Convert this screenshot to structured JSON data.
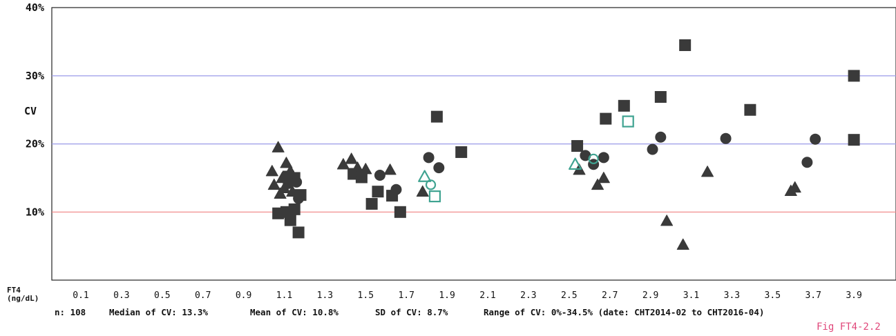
{
  "chart_data": {
    "type": "scatter",
    "xlabel": "FT4",
    "xlabel_unit": "(ng/dL)",
    "ylabel": "CV",
    "xlim": [
      0.0,
      4.0
    ],
    "ylim": [
      0,
      40
    ],
    "y_ticks": [
      {
        "value": 40,
        "label": "40%"
      },
      {
        "value": 30,
        "label": "30%"
      },
      {
        "value": 20,
        "label": "20%"
      },
      {
        "value": 10,
        "label": "10%"
      }
    ],
    "x_ticks": [
      "0.1",
      "0.3",
      "0.5",
      "0.7",
      "0.9",
      "1.1",
      "1.3",
      "1.5",
      "1.7",
      "1.9",
      "2.1",
      "2.3",
      "2.5",
      "2.7",
      "2.9",
      "3.1",
      "3.3",
      "3.5",
      "3.7",
      "3.9"
    ],
    "reference_lines": [
      {
        "y": 30,
        "color": "#9a9ae8"
      },
      {
        "y": 20,
        "color": "#9a9ae8"
      },
      {
        "y": 10,
        "color": "#f08080"
      }
    ],
    "series": [
      {
        "marker": "triangle",
        "filled": true,
        "color": "#3a3a3a",
        "points": [
          [
            1.07,
            19.5
          ],
          [
            1.04,
            16
          ],
          [
            1.09,
            15
          ],
          [
            1.11,
            17.2
          ],
          [
            1.13,
            16
          ],
          [
            1.05,
            14
          ],
          [
            1.1,
            13.5
          ],
          [
            1.08,
            12.7
          ],
          [
            1.14,
            13
          ],
          [
            1.39,
            17
          ],
          [
            1.43,
            17.8
          ],
          [
            1.46,
            16.5
          ],
          [
            1.5,
            16.3
          ],
          [
            1.62,
            16.2
          ],
          [
            1.78,
            13
          ],
          [
            2.55,
            16.2
          ],
          [
            2.64,
            14
          ],
          [
            2.67,
            15
          ],
          [
            2.98,
            8.7
          ],
          [
            3.06,
            5.2
          ],
          [
            3.18,
            15.9
          ],
          [
            3.59,
            13.1
          ],
          [
            3.61,
            13.6
          ]
        ]
      },
      {
        "marker": "square",
        "filled": true,
        "color": "#3a3a3a",
        "points": [
          [
            1.07,
            9.8
          ],
          [
            1.11,
            10
          ],
          [
            1.15,
            10.4
          ],
          [
            1.13,
            8.8
          ],
          [
            1.17,
            7
          ],
          [
            1.12,
            15.2
          ],
          [
            1.15,
            15
          ],
          [
            1.18,
            12.5
          ],
          [
            1.44,
            15.6
          ],
          [
            1.48,
            15.1
          ],
          [
            1.53,
            11.2
          ],
          [
            1.56,
            13
          ],
          [
            1.63,
            12.4
          ],
          [
            1.67,
            10
          ],
          [
            1.85,
            24
          ],
          [
            1.97,
            18.8
          ],
          [
            2.54,
            19.7
          ],
          [
            2.68,
            23.7
          ],
          [
            2.77,
            25.6
          ],
          [
            2.95,
            26.9
          ],
          [
            3.07,
            34.5
          ],
          [
            3.39,
            25
          ],
          [
            3.9,
            20.6
          ],
          [
            3.9,
            30
          ]
        ]
      },
      {
        "marker": "circle",
        "filled": true,
        "color": "#3a3a3a",
        "points": [
          [
            1.12,
            14.2
          ],
          [
            1.16,
            14.4
          ],
          [
            1.17,
            12
          ],
          [
            1.48,
            15.5
          ],
          [
            1.57,
            15.4
          ],
          [
            1.65,
            13.3
          ],
          [
            1.81,
            18
          ],
          [
            1.86,
            16.5
          ],
          [
            2.58,
            18.3
          ],
          [
            2.62,
            17
          ],
          [
            2.67,
            18
          ],
          [
            2.91,
            19.2
          ],
          [
            2.95,
            21
          ],
          [
            3.27,
            20.8
          ],
          [
            3.67,
            17.3
          ],
          [
            3.71,
            20.7
          ]
        ]
      },
      {
        "marker": "triangle",
        "filled": false,
        "color": "#3fa391",
        "points": [
          [
            1.79,
            15.2
          ],
          [
            2.53,
            17
          ]
        ]
      },
      {
        "marker": "circle",
        "filled": false,
        "color": "#3fa391",
        "points": [
          [
            1.82,
            14
          ],
          [
            2.62,
            17.8
          ]
        ]
      },
      {
        "marker": "square",
        "filled": false,
        "color": "#3fa391",
        "points": [
          [
            1.84,
            12.3
          ],
          [
            2.79,
            23.3
          ]
        ]
      }
    ]
  },
  "stats": {
    "n": "n: 108",
    "median": "Median of CV: 13.3%",
    "mean": "Mean of CV: 10.8%",
    "sd": "SD of CV: 8.7%",
    "range": "Range of CV: 0%-34.5% (date: CHT2014-02 to CHT2016-04)"
  },
  "figure_label": "Fig FT4-2.2"
}
